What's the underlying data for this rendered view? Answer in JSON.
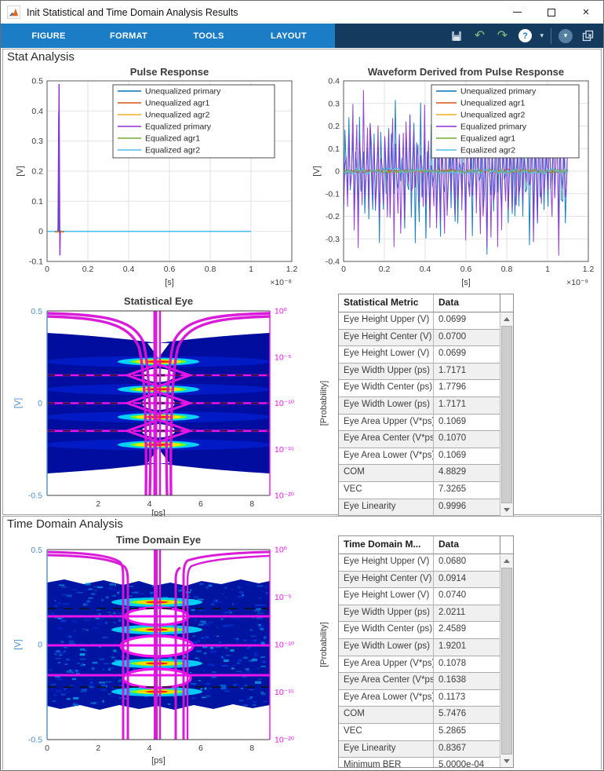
{
  "window": {
    "title": "Init Statistical and Time Domain Analysis Results"
  },
  "icons": {
    "minimize": "–",
    "close": "×",
    "undo": "↶",
    "redo": "↷",
    "help": "?",
    "caret": "▾",
    "overflow_caret": "▾"
  },
  "ribbon": {
    "tabs": [
      "FIGURE",
      "FORMAT",
      "TOOLS",
      "LAYOUT"
    ],
    "accent_color": "#1a7dc6",
    "dark_color": "#143a5e"
  },
  "sections": {
    "stat": {
      "title": "Stat Analysis"
    },
    "time": {
      "title": "Time Domain Analysis"
    }
  },
  "chart_data": [
    {
      "id": "pulse_response",
      "type": "line",
      "title": "Pulse Response",
      "xlabel": "[s]",
      "ylabel": "[V]",
      "x_exponent": "×10⁻⁸",
      "xlim": [
        0,
        1.2e-08
      ],
      "ylim": [
        -0.1,
        0.5
      ],
      "grid": true,
      "legend_position": "northeast-inside",
      "x_ticks": [
        "0",
        "0.2",
        "0.4",
        "0.6",
        "0.8",
        "1",
        "1.2"
      ],
      "y_ticks": [
        "0.5",
        "0.4",
        "0.3",
        "0.2",
        "0.1",
        "0",
        "-0.1"
      ],
      "series": [
        {
          "name": "Unequalized primary",
          "color": "#0072BD",
          "shape": "impulse",
          "peak_x_s": 6e-10,
          "peak_v": 0.395
        },
        {
          "name": "Unequalized agr1",
          "color": "#D95319",
          "shape": "flat-zero"
        },
        {
          "name": "Unequalized agr2",
          "color": "#EDB120",
          "shape": "flat-zero"
        },
        {
          "name": "Equalized primary",
          "color": "#8B2FD6",
          "shape": "impulse",
          "peak_x_s": 6.2e-10,
          "peak_v": 0.487,
          "undershoot_v": -0.08
        },
        {
          "name": "Equalized agr1",
          "color": "#77AC30",
          "shape": "flat-zero"
        },
        {
          "name": "Equalized agr2",
          "color": "#4DBEEE",
          "shape": "flat-zero",
          "extent_x_s": 1e-08
        }
      ]
    },
    {
      "id": "waveform",
      "type": "line",
      "title": "Waveform Derived from Pulse Response",
      "xlabel": "[s]",
      "ylabel": "[V]",
      "x_exponent": "×10⁻⁹",
      "xlim": [
        0,
        1.2e-09
      ],
      "ylim": [
        -0.4,
        0.4
      ],
      "grid": true,
      "legend_position": "northeast-inside",
      "x_ticks": [
        "0",
        "0.2",
        "0.4",
        "0.6",
        "0.8",
        "1",
        "1.2"
      ],
      "y_ticks": [
        "0.4",
        "0.3",
        "0.2",
        "0.1",
        "0",
        "-0.1",
        "-0.2",
        "-0.3",
        "-0.4"
      ],
      "series": [
        {
          "name": "Unequalized primary",
          "color": "#0072BD",
          "style": "dense-noise",
          "seed": 11,
          "points": 170,
          "v_range": [
            -0.4,
            0.345
          ]
        },
        {
          "name": "Unequalized agr1",
          "color": "#D95319",
          "style": "near-zero",
          "seed": 3,
          "points": 120,
          "amp": 0.008
        },
        {
          "name": "Unequalized agr2",
          "color": "#EDB120",
          "style": "near-zero",
          "seed": 4,
          "points": 120,
          "amp": 0.008
        },
        {
          "name": "Equalized primary",
          "color": "#8B2FD6",
          "style": "dense-noise",
          "seed": 23,
          "points": 170,
          "v_range": [
            -0.375,
            0.36
          ]
        },
        {
          "name": "Equalized agr1",
          "color": "#77AC30",
          "style": "near-zero",
          "seed": 5,
          "points": 120,
          "amp": 0.008
        },
        {
          "name": "Equalized agr2",
          "color": "#4DBEEE",
          "style": "near-zero",
          "seed": 6,
          "points": 120,
          "amp": 0.013
        }
      ]
    },
    {
      "id": "statistical_eye",
      "type": "eye-heatmap",
      "title": "Statistical Eye",
      "xlabel": "[ps]",
      "ylabel_left": "[V]",
      "ylabel_right": "[Probability]",
      "xlim": [
        0,
        8.7
      ],
      "ylim_left": [
        -0.5,
        0.5
      ],
      "x_ticks": [
        "2",
        "4",
        "6",
        "8"
      ],
      "y_ticks_left": [
        "0.5",
        "0",
        "-0.5"
      ],
      "y_ticks_right": [
        "10⁰",
        "10⁻⁵",
        "10⁻¹⁰",
        "10⁻¹⁵",
        "10⁻²⁰"
      ],
      "left_axis_color": "#4a8fce",
      "right_axis_color": "#EC13EC",
      "pam4_level_v": [
        0.225,
        0.075,
        -0.075,
        -0.225
      ],
      "eye_center_v": [
        0.15,
        0,
        -0.15
      ],
      "threshold_dashed_v": [
        0.15,
        0,
        -0.15
      ],
      "contour_color": "#EC13EC",
      "heatmap_colors": [
        "#000d9e",
        "#0033ff",
        "#00e5ff",
        "#7cfc00",
        "#ffe400",
        "#ff2000"
      ]
    },
    {
      "id": "time_domain_eye",
      "type": "eye-heatmap",
      "title": "Time Domain Eye",
      "xlabel": "[ps]",
      "ylabel_left": "[V]",
      "ylabel_right": "[Probability]",
      "xlim": [
        0,
        8.7
      ],
      "ylim_left": [
        -0.5,
        0.5
      ],
      "x_ticks": [
        "0",
        "2",
        "4",
        "6",
        "8"
      ],
      "y_ticks_left": [
        "0.5",
        "0",
        "-0.5"
      ],
      "y_ticks_right": [
        "10⁰",
        "10⁻⁵",
        "10⁻¹⁰",
        "10⁻¹⁵",
        "10⁻²⁰"
      ],
      "left_axis_color": "#4a8fce",
      "right_axis_color": "#EC13EC",
      "pam4_level_v": [
        0.225,
        0.08,
        -0.1,
        -0.25
      ],
      "solid_magenta_v": [
        0.15,
        0,
        -0.18
      ],
      "dashed_black_v": [
        0.19,
        0,
        -0.22
      ],
      "vertical_lines_ps": [
        2.97,
        3.15,
        4.24,
        4.38,
        5.02,
        5.18,
        5.33
      ],
      "contour_color": "#EC13EC",
      "speckle": {
        "seed": 42,
        "count": 640,
        "colors": [
          "#001090",
          "#0026d8",
          "#0048ff",
          "#0080ff",
          "#00b8ff",
          "#00e4ff"
        ]
      }
    }
  ],
  "tables": {
    "stat": {
      "headers": [
        "Statistical Metric",
        "Data"
      ],
      "rows": [
        [
          "Eye Height Upper (V)",
          "0.0699"
        ],
        [
          "Eye Height Center (V)",
          "0.0700"
        ],
        [
          "Eye Height Lower (V)",
          "0.0699"
        ],
        [
          "Eye Width Upper (ps)",
          "1.7171"
        ],
        [
          "Eye Width Center (ps)",
          "1.7796"
        ],
        [
          "Eye Width Lower (ps)",
          "1.7171"
        ],
        [
          "Eye Area Upper (V*ps)",
          "0.1069"
        ],
        [
          "Eye Area Center (V*ps)",
          "0.1070"
        ],
        [
          "Eye Area Lower (V*ps)",
          "0.1069"
        ],
        [
          "COM",
          "4.8829"
        ],
        [
          "VEC",
          "7.3265"
        ],
        [
          "Eye Linearity",
          "0.9996"
        ]
      ]
    },
    "time": {
      "headers": [
        "Time Domain M...",
        "Data"
      ],
      "rows": [
        [
          "Eye Height Upper (V)",
          "0.0680"
        ],
        [
          "Eye Height Center (V)",
          "0.0914"
        ],
        [
          "Eye Height Lower (V)",
          "0.0740"
        ],
        [
          "Eye Width Upper (ps)",
          "2.0211"
        ],
        [
          "Eye Width Center (ps)",
          "2.4589"
        ],
        [
          "Eye Width Lower (ps)",
          "1.9201"
        ],
        [
          "Eye Area Upper (V*ps)",
          "0.1078"
        ],
        [
          "Eye Area Center (V*ps)",
          "0.1638"
        ],
        [
          "Eye Area Lower (V*ps)",
          "0.1173"
        ],
        [
          "COM",
          "5.7476"
        ],
        [
          "VEC",
          "5.2865"
        ],
        [
          "Eye Linearity",
          "0.8367"
        ],
        [
          "Minimum BER",
          "5.0000e-04"
        ]
      ]
    }
  }
}
